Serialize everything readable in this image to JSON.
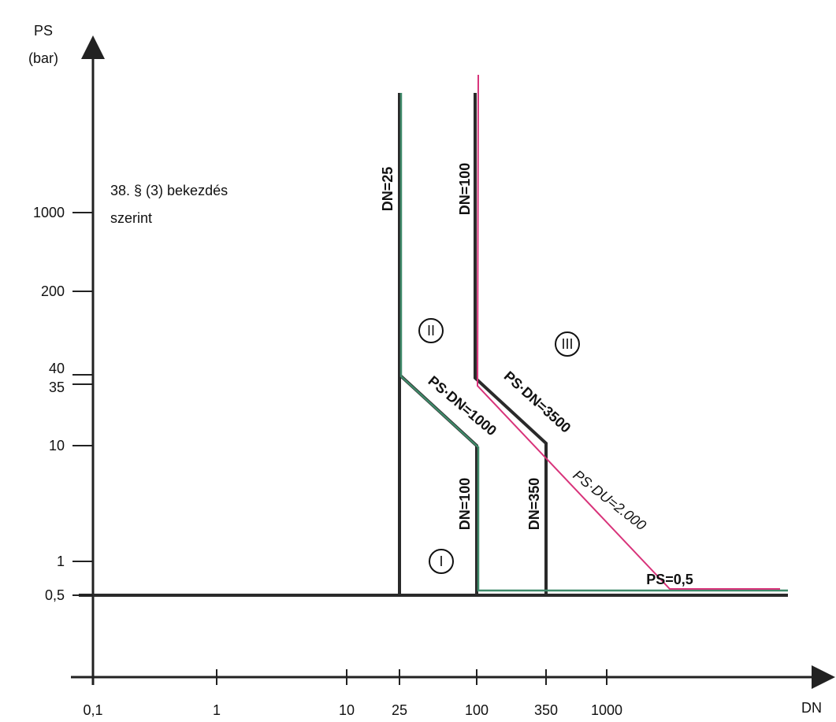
{
  "axes": {
    "y_label": [
      "PS",
      "(bar)"
    ],
    "x_label": "DN",
    "x_ticks": [
      "0,1",
      "1",
      "10",
      "25",
      "100",
      "350",
      "1000"
    ],
    "y_ticks": [
      "1000",
      "200",
      "40",
      "35",
      "10",
      "1",
      "0,5"
    ]
  },
  "note": [
    "38. § (3) bekezdés",
    "szerint"
  ],
  "line_labels": [
    "DN=25",
    "DN=100",
    "DN=100",
    "DN=350",
    "PS·DN=1000",
    "PS·DN=3500",
    "PS·DU=2.000",
    "PS=0,5"
  ],
  "regions": [
    "I",
    "II",
    "III"
  ]
}
